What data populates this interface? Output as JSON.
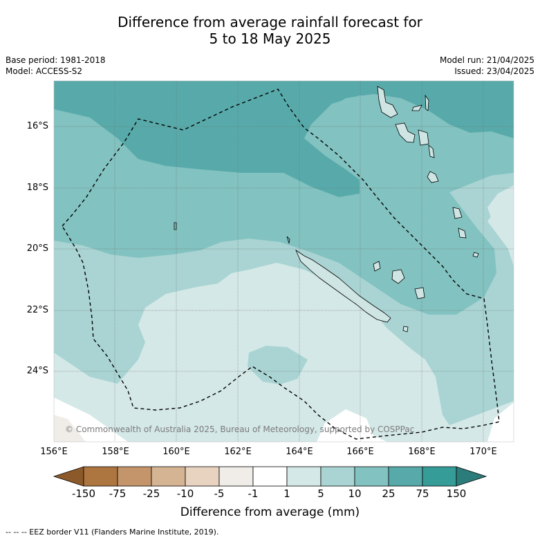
{
  "title_line1": "Difference from average rainfall forecast for",
  "title_line2": "5 to 18 May 2025",
  "base_period": "Base period: 1981-2018",
  "model": "Model: ACCESS-S2",
  "model_run": "Model run: 21/04/2025",
  "issued": "Issued: 23/04/2025",
  "lat_labels": [
    "16°S",
    "18°S",
    "20°S",
    "22°S",
    "24°S"
  ],
  "lon_labels": [
    "156°E",
    "158°E",
    "160°E",
    "162°E",
    "164°E",
    "166°E",
    "168°E",
    "170°E"
  ],
  "copyright": "© Commonwealth of Australia 2025, Bureau of Meteorology, supported by COSPPac",
  "colorbar": {
    "title": "Difference from average (mm)",
    "tick_labels": [
      "-150",
      "-75",
      "-25",
      "-10",
      "-5",
      "-1",
      "1",
      "5",
      "10",
      "25",
      "75",
      "150"
    ],
    "colors": [
      "#8c5a2a",
      "#ad7540",
      "#c4956b",
      "#d5b494",
      "#e8d3c0",
      "#f0ede9",
      "#ffffff",
      "#d4e8e7",
      "#a9d4d3",
      "#82c2c0",
      "#58aaaa",
      "#359c98",
      "#2b7c7a"
    ]
  },
  "footer": "-- -- -- EEZ border V11 (Flanders Marine Institute, 2019)."
}
